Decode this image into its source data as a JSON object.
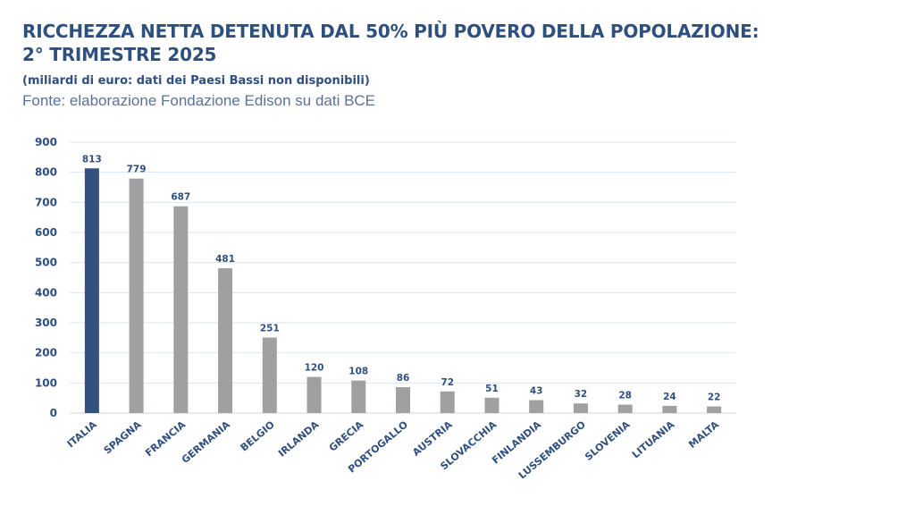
{
  "header": {
    "title_line1": "RICCHEZZA NETTA DETENUTA DAL 50% PIÙ POVERO DELLA POPOLAZIONE:",
    "title_line2": "2° TRIMESTRE 2025",
    "subtitle": "(miliardi di euro:  dati dei Paesi Bassi non disponibili)",
    "source": "Fonte: elaborazione Fondazione Edison su dati BCE"
  },
  "colors": {
    "highlight": "#33507f",
    "bar": "#a0a0a0",
    "text": "#2f4f7f",
    "grid": "#dde3ee"
  },
  "chart_data": {
    "type": "bar",
    "title": "RICCHEZZA NETTA DETENUTA DAL 50% PIÙ POVERO DELLA POPOLAZIONE: 2° TRIMESTRE 2025",
    "xlabel": "",
    "ylabel": "",
    "ylim": [
      0,
      900
    ],
    "yticks": [
      0,
      100,
      200,
      300,
      400,
      500,
      600,
      700,
      800,
      900
    ],
    "grid": true,
    "categories": [
      "ITALIA",
      "SPAGNA",
      "FRANCIA",
      "GERMANIA",
      "BELGIO",
      "IRLANDA",
      "GRECIA",
      "PORTOGALLO",
      "AUSTRIA",
      "SLOVACCHIA",
      "FINLANDIA",
      "LUSSEMBURGO",
      "SLOVENIA",
      "LITUANIA",
      "MALTA"
    ],
    "values": [
      813,
      779,
      687,
      481,
      251,
      120,
      108,
      86,
      72,
      51,
      43,
      32,
      28,
      24,
      22
    ],
    "highlighted": [
      "ITALIA"
    ]
  }
}
